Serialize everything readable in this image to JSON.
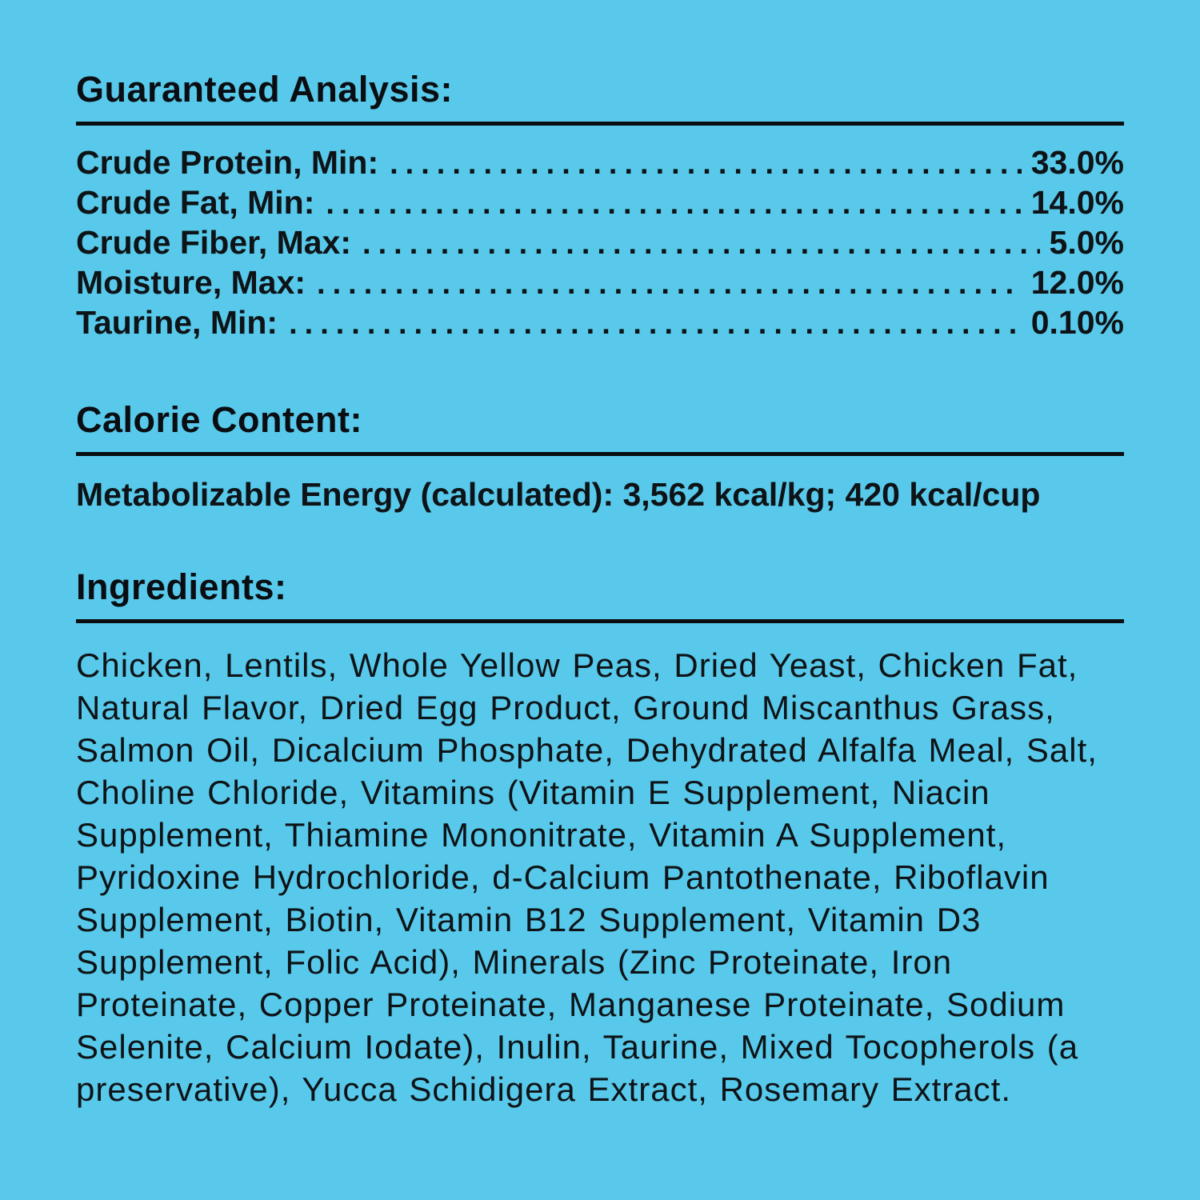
{
  "page": {
    "background_color": "#58c9ea",
    "text_color": "#0e1317"
  },
  "guaranteed_analysis": {
    "title": "Guaranteed Analysis:",
    "rows": [
      {
        "label": "Crude Protein, Min:",
        "value": "33.0%"
      },
      {
        "label": "Crude Fat, Min:",
        "value": "14.0%"
      },
      {
        "label": "Crude Fiber, Max:",
        "value": "5.0%"
      },
      {
        "label": "Moisture, Max:",
        "value": "12.0%"
      },
      {
        "label": "Taurine, Min:",
        "value": "0.10%"
      }
    ]
  },
  "calorie_content": {
    "title": "Calorie Content:",
    "text": "Metabolizable Energy (calculated): 3,562 kcal/kg; 420 kcal/cup"
  },
  "ingredients": {
    "title": "Ingredients:",
    "text": "Chicken, Lentils, Whole Yellow Peas, Dried Yeast, Chicken Fat, Natural Flavor, Dried Egg Product, Ground Miscanthus Grass, Salmon Oil, Dicalcium Phosphate, Dehydrated Alfalfa Meal, Salt, Choline Chloride, Vitamins (Vitamin E Supplement, Niacin Supplement, Thiamine Mononitrate, Vitamin A Supplement, Pyridoxine Hydrochloride, d-Calcium Pantothenate, Riboflavin Supplement, Biotin, Vitamin B12 Supplement, Vitamin D3 Supplement, Folic Acid), Minerals (Zinc Proteinate, Iron Proteinate, Copper Proteinate, Manganese Proteinate, Sodium Selenite, Calcium Iodate), Inulin, Taurine, Mixed Tocopherols (a preservative), Yucca Schidigera Extract, Rosemary Extract."
  }
}
